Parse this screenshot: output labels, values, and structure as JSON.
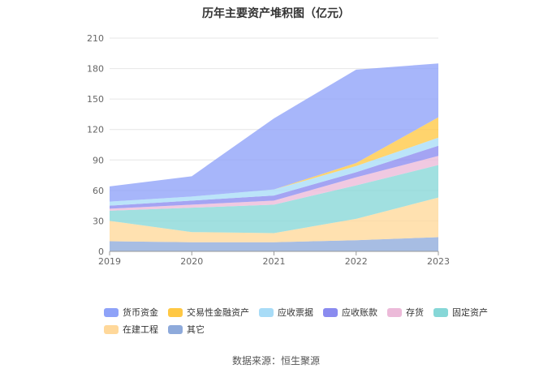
{
  "title": "历年主要资产堆积图（亿元）",
  "source_text": "数据来源：恒生聚源",
  "chart_data": {
    "type": "area",
    "stacked": true,
    "title": "历年主要资产堆积图（亿元）",
    "x": [
      "2019",
      "2020",
      "2021",
      "2022",
      "2023"
    ],
    "ylim": [
      0,
      210
    ],
    "yticks": [
      "0",
      "30",
      "60",
      "90",
      "120",
      "150",
      "180",
      "210"
    ],
    "grid": true,
    "legend_position": "bottom",
    "series": [
      {
        "name": "其它",
        "color": "#8eaadb",
        "values": [
          10,
          9,
          9,
          11,
          14
        ]
      },
      {
        "name": "在建工程",
        "color": "#ffd89a",
        "values": [
          20,
          10,
          9,
          21,
          39
        ]
      },
      {
        "name": "固定资产",
        "color": "#86d7d7",
        "values": [
          10,
          24,
          28,
          33,
          32
        ]
      },
      {
        "name": "存货",
        "color": "#ecbad9",
        "values": [
          2,
          3,
          4,
          8,
          9
        ]
      },
      {
        "name": "应收账款",
        "color": "#8a8bef",
        "values": [
          3,
          4,
          5,
          5,
          10
        ]
      },
      {
        "name": "应收票据",
        "color": "#a8dcf7",
        "values": [
          4,
          4,
          6,
          6,
          8
        ]
      },
      {
        "name": "交易性金融资产",
        "color": "#ffc844",
        "values": [
          0,
          0,
          0,
          3,
          20
        ]
      },
      {
        "name": "货币资金",
        "color": "#8ea2f8",
        "values": [
          15,
          20,
          70,
          92,
          53
        ]
      }
    ],
    "legend_rows": [
      [
        "货币资金",
        "交易性金融资产",
        "应收票据",
        "应收账款",
        "存货",
        "固定资产"
      ],
      [
        "在建工程",
        "其它"
      ]
    ]
  }
}
